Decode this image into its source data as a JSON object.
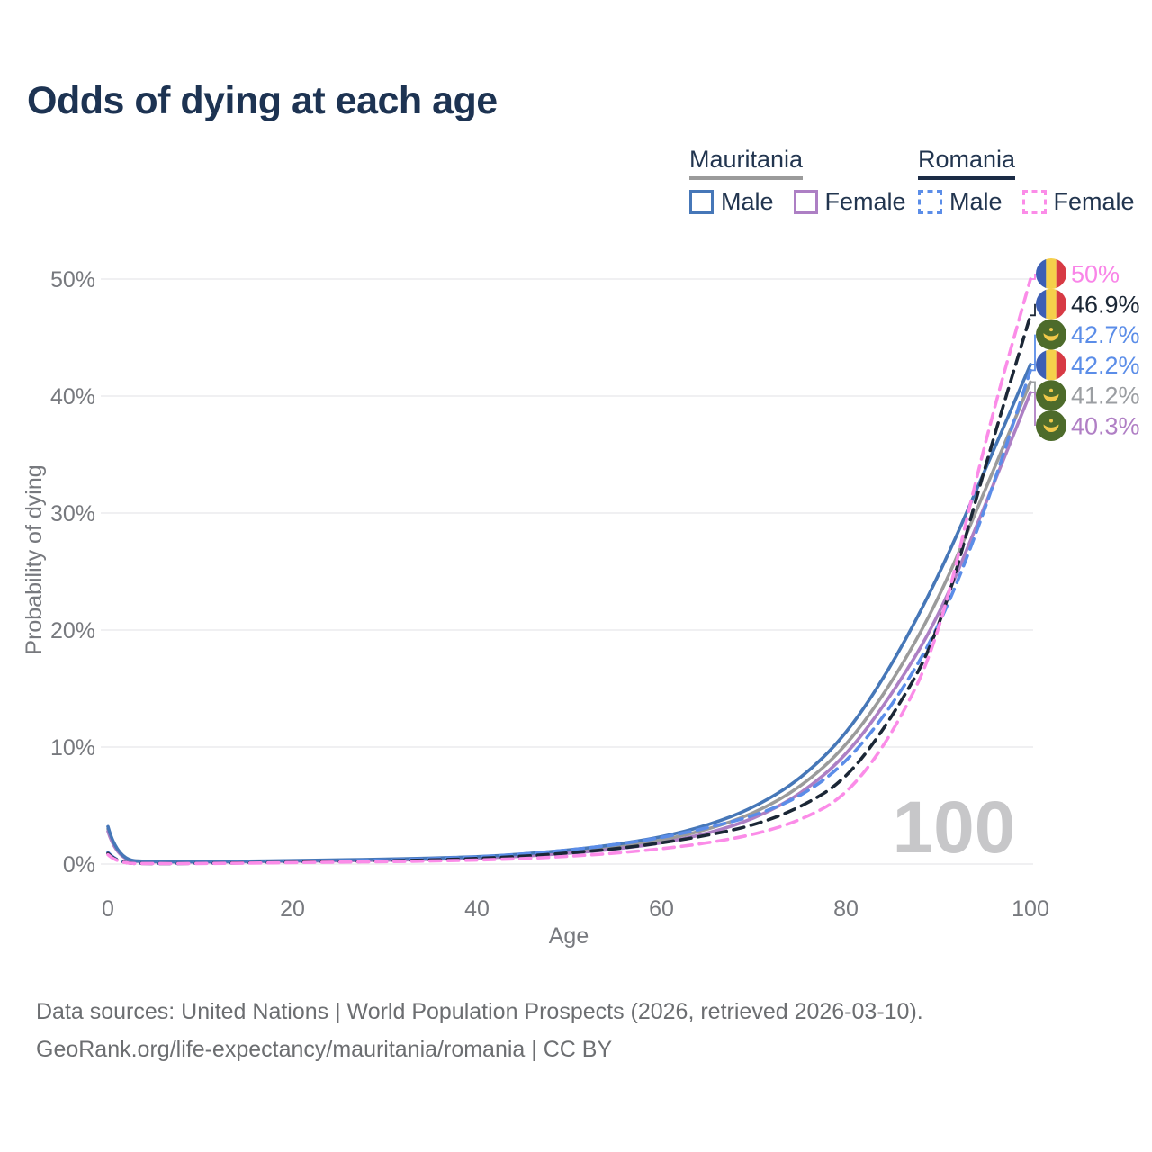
{
  "title": "Odds of dying at each age",
  "legend": {
    "groups": [
      {
        "label": "Mauritania",
        "style": "solid",
        "underline_color": "#9b9b9b",
        "items": [
          {
            "label": "Male",
            "color": "#4677b8",
            "dashed": false
          },
          {
            "label": "Female",
            "color": "#ad7fc4",
            "dashed": false
          }
        ]
      },
      {
        "label": "Romania",
        "style": "dashed",
        "underline_color": "#1b2b45",
        "items": [
          {
            "label": "Male",
            "color": "#5b8de8",
            "dashed": true
          },
          {
            "label": "Female",
            "color": "#fb8ce8",
            "dashed": true
          }
        ]
      }
    ]
  },
  "chart_data": {
    "type": "line",
    "title": "Odds of dying at each age",
    "xlabel": "Age",
    "ylabel": "Probability of dying",
    "xlim": [
      0,
      100
    ],
    "ylim_pct": [
      0,
      50
    ],
    "x_ticks": [
      0,
      20,
      40,
      60,
      80,
      100
    ],
    "y_ticks": [
      0,
      10,
      20,
      30,
      40,
      50
    ],
    "y_tick_labels": [
      "0%",
      "10%",
      "20%",
      "30%",
      "40%",
      "50%"
    ],
    "grid": "horizontal",
    "legend_position": "top-right",
    "ages": [
      0,
      1,
      5,
      10,
      15,
      20,
      25,
      30,
      35,
      40,
      45,
      50,
      55,
      60,
      65,
      70,
      75,
      80,
      85,
      90,
      95,
      100
    ],
    "series": [
      {
        "id": "mrt-all",
        "name": "Mauritania — Both sexes",
        "country": "Mauritania",
        "sex": "Both",
        "style": "solid",
        "color": "#9b9b9b",
        "values": [
          3.0,
          0.33,
          0.19,
          0.18,
          0.22,
          0.27,
          0.31,
          0.37,
          0.45,
          0.56,
          0.75,
          1.05,
          1.45,
          2.0,
          2.95,
          4.3,
          6.5,
          10.0,
          15.5,
          22.5,
          31.8,
          41.2
        ]
      },
      {
        "id": "mrt-female",
        "name": "Mauritania — Female",
        "country": "Mauritania",
        "sex": "Female",
        "style": "solid",
        "color": "#ad7fc4",
        "values": [
          2.8,
          0.3,
          0.17,
          0.16,
          0.2,
          0.24,
          0.28,
          0.32,
          0.4,
          0.5,
          0.66,
          0.92,
          1.27,
          1.78,
          2.6,
          3.85,
          5.9,
          9.2,
          14.5,
          21.0,
          30.5,
          40.3
        ]
      },
      {
        "id": "mrt-male",
        "name": "Mauritania — Male",
        "country": "Mauritania",
        "sex": "Male",
        "style": "solid",
        "color": "#4677b8",
        "values": [
          3.2,
          0.35,
          0.2,
          0.2,
          0.25,
          0.3,
          0.35,
          0.42,
          0.5,
          0.62,
          0.85,
          1.2,
          1.65,
          2.3,
          3.3,
          4.8,
          7.2,
          11.0,
          17.0,
          24.5,
          33.5,
          42.7
        ]
      },
      {
        "id": "rou-male",
        "name": "Romania — Male",
        "country": "Romania",
        "sex": "Male",
        "style": "dashed",
        "color": "#5b8de8",
        "values": [
          1.0,
          0.08,
          0.05,
          0.07,
          0.12,
          0.2,
          0.26,
          0.33,
          0.45,
          0.6,
          0.85,
          1.2,
          1.65,
          2.25,
          3.1,
          4.1,
          5.7,
          8.6,
          13.5,
          20.0,
          30.0,
          42.2
        ]
      },
      {
        "id": "rou-all",
        "name": "Romania — Both sexes",
        "country": "Romania",
        "sex": "Both",
        "style": "dashed",
        "color": "#1b2736",
        "values": [
          0.9,
          0.07,
          0.04,
          0.06,
          0.1,
          0.16,
          0.21,
          0.26,
          0.35,
          0.47,
          0.66,
          0.95,
          1.3,
          1.8,
          2.45,
          3.3,
          4.8,
          7.2,
          12.5,
          19.5,
          33.8,
          46.9
        ]
      },
      {
        "id": "rou-female",
        "name": "Romania — Female",
        "country": "Romania",
        "sex": "Female",
        "style": "dashed",
        "color": "#fb8ce8",
        "values": [
          0.8,
          0.06,
          0.04,
          0.05,
          0.08,
          0.12,
          0.16,
          0.2,
          0.26,
          0.34,
          0.46,
          0.66,
          0.92,
          1.3,
          1.8,
          2.5,
          3.7,
          5.8,
          11.0,
          19.0,
          36.0,
          50.0
        ]
      }
    ],
    "end_labels": [
      {
        "text": "50%",
        "value": 50,
        "color": "#f985e8",
        "flag": "romania-flag",
        "series": "Romania — Female"
      },
      {
        "text": "46.9%",
        "value": 46.9,
        "color": "#1b2736",
        "flag": "romania-flag",
        "series": "Romania — Both sexes"
      },
      {
        "text": "42.7%",
        "value": 42.7,
        "color": "#5b8de8",
        "flag": "mauritania-flag",
        "series": "Mauritania — Male"
      },
      {
        "text": "42.2%",
        "value": 42.2,
        "color": "#5b8de8",
        "flag": "romania-flag",
        "series": "Romania — Male"
      },
      {
        "text": "41.2%",
        "value": 41.2,
        "color": "#9b9ea2",
        "flag": "mauritania-flag",
        "series": "Mauritania — Both sexes"
      },
      {
        "text": "40.3%",
        "value": 40.3,
        "color": "#b07fc5",
        "flag": "mauritania-flag",
        "series": "Mauritania — Female"
      }
    ],
    "watermark": "100"
  },
  "flags": {
    "romania": {
      "bands": [
        "#3c5fb5",
        "#f5d04b",
        "#d73a44"
      ]
    },
    "mauritania": {
      "field": "#4d6b2b",
      "emblem": "#f2c94a"
    }
  },
  "watermark": "100",
  "footer": {
    "line1": "Data sources: United Nations | World Population Prospects (2026, retrieved 2026-03-10).",
    "line2": "GeoRank.org/life-expectancy/mauritania/romania | CC BY"
  }
}
